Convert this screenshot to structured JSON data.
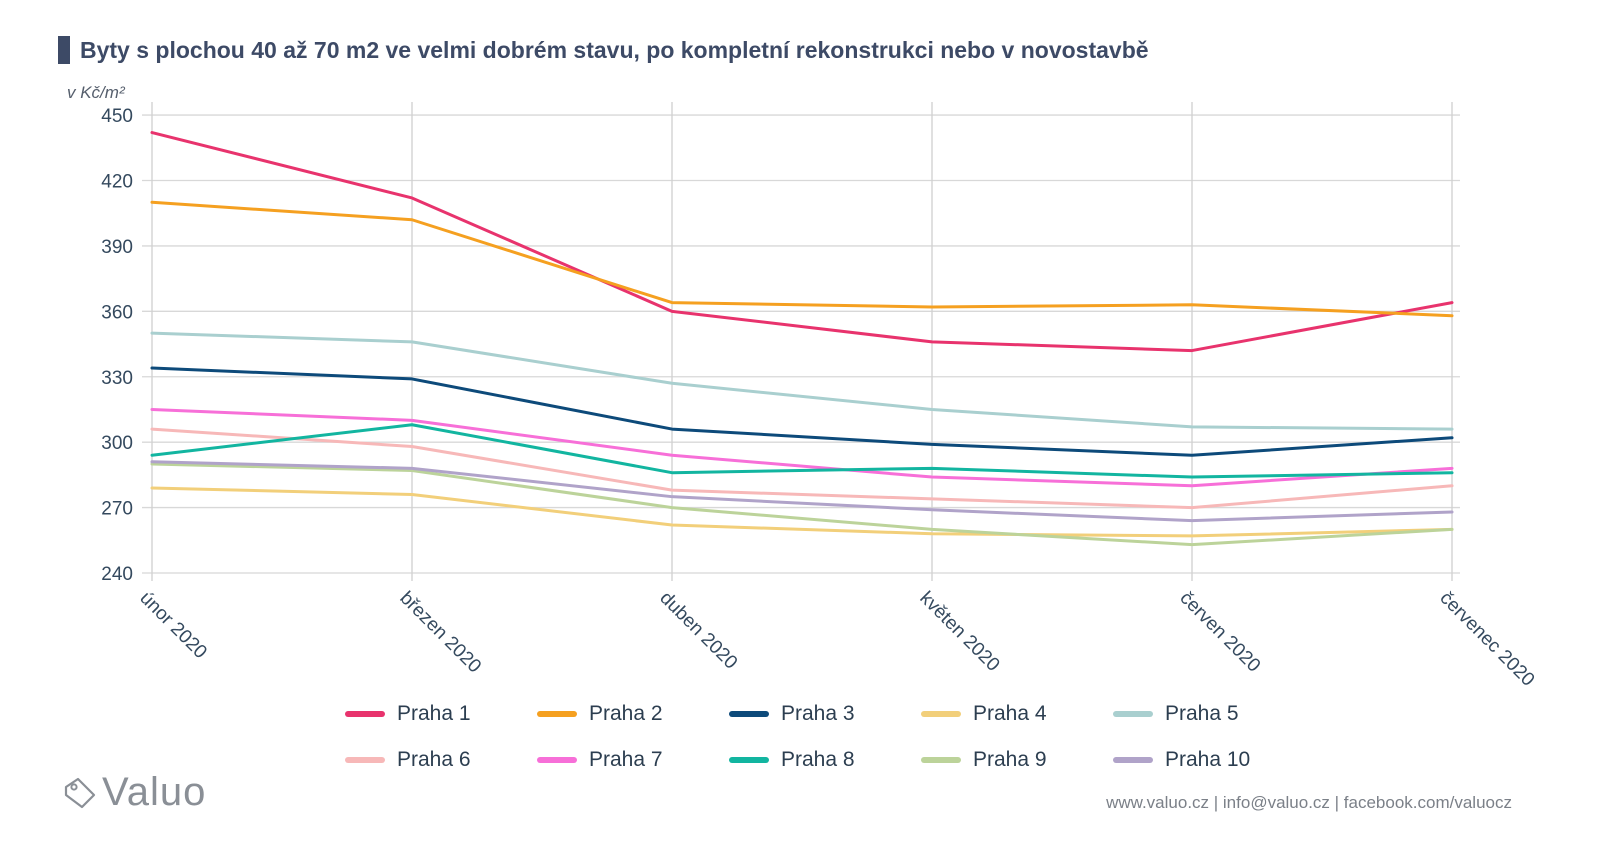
{
  "header": {
    "title": "Byty s plochou 40 až 70 m2 ve velmi dobrém stavu, po kompletní rekonstrukci nebo v novostavbě",
    "unit": "v Kč/m²"
  },
  "footer": {
    "logo_text": "Valuo",
    "links": "www.valuo.cz | info@valuo.cz | facebook.com/valuocz"
  },
  "chart_data": {
    "type": "line",
    "title": "Byty s plochou 40 až 70 m2 ve velmi dobrém stavu, po kompletní rekonstrukci nebo v novostavbě",
    "ylabel": "v Kč/m²",
    "xlabel": "",
    "categories": [
      "únor 2020",
      "březen 2020",
      "duben 2020",
      "květen 2020",
      "červen 2020",
      "červenec 2020"
    ],
    "ylim": [
      240,
      456
    ],
    "yticks": [
      240,
      270,
      300,
      330,
      360,
      390,
      420,
      450
    ],
    "grid": true,
    "legend_position": "bottom",
    "series": [
      {
        "name": "Praha 1",
        "color": "#e8336d",
        "values": [
          442,
          412,
          360,
          346,
          342,
          364
        ]
      },
      {
        "name": "Praha 2",
        "color": "#f5a020",
        "values": [
          410,
          402,
          364,
          362,
          363,
          358
        ]
      },
      {
        "name": "Praha 3",
        "color": "#0d4a7a",
        "values": [
          334,
          329,
          306,
          299,
          294,
          302
        ]
      },
      {
        "name": "Praha 4",
        "color": "#f2cf7a",
        "values": [
          279,
          276,
          262,
          258,
          257,
          260
        ]
      },
      {
        "name": "Praha 5",
        "color": "#a9cfcf",
        "values": [
          350,
          346,
          327,
          315,
          307,
          306
        ]
      },
      {
        "name": "Praha 6",
        "color": "#f7b8b8",
        "values": [
          306,
          298,
          278,
          274,
          270,
          280
        ]
      },
      {
        "name": "Praha 7",
        "color": "#f76fd8",
        "values": [
          315,
          310,
          294,
          284,
          280,
          288
        ]
      },
      {
        "name": "Praha 8",
        "color": "#12b5a0",
        "values": [
          294,
          308,
          286,
          288,
          284,
          286
        ]
      },
      {
        "name": "Praha 9",
        "color": "#bcd39a",
        "values": [
          290,
          287,
          270,
          260,
          253,
          260
        ]
      },
      {
        "name": "Praha 10",
        "color": "#b0a3c9",
        "values": [
          291,
          288,
          275,
          269,
          264,
          268
        ]
      }
    ]
  }
}
